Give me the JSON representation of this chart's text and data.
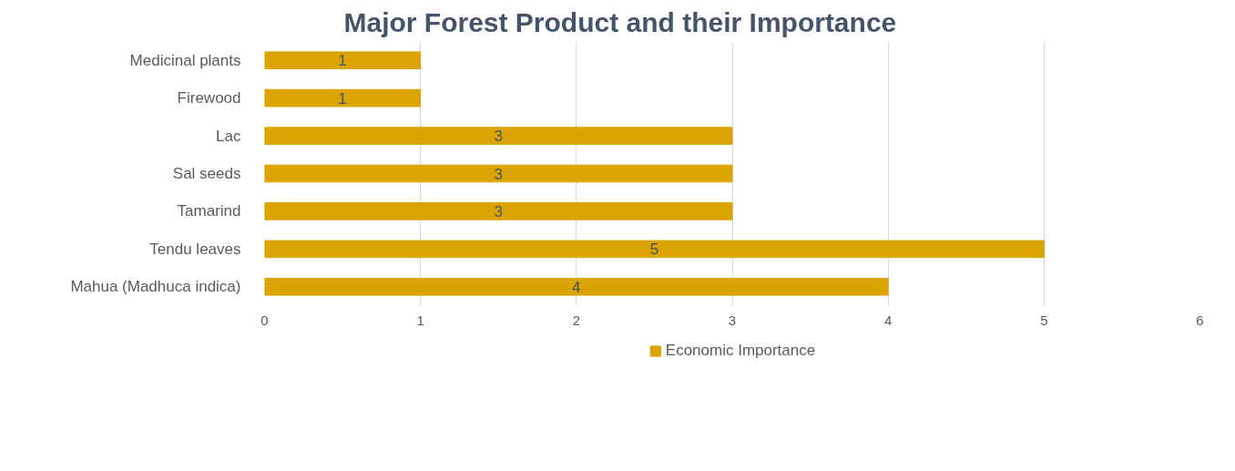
{
  "chart_data": {
    "type": "bar",
    "orientation": "horizontal",
    "title": "Major Forest Product and their Importance",
    "categories": [
      "Medicinal plants",
      "Firewood",
      "Lac",
      "Sal seeds",
      "Tamarind",
      "Tendu leaves",
      "Mahua (Madhuca indica)"
    ],
    "series": [
      {
        "name": "Economic Importance",
        "color": "#dba400",
        "values": [
          1,
          1,
          3,
          3,
          3,
          5,
          4
        ]
      }
    ],
    "xlim": [
      0,
      6
    ],
    "xticks": [
      0,
      1,
      2,
      3,
      4,
      5,
      6
    ],
    "grid": "x",
    "legend": "bottom",
    "data_labels": true
  }
}
